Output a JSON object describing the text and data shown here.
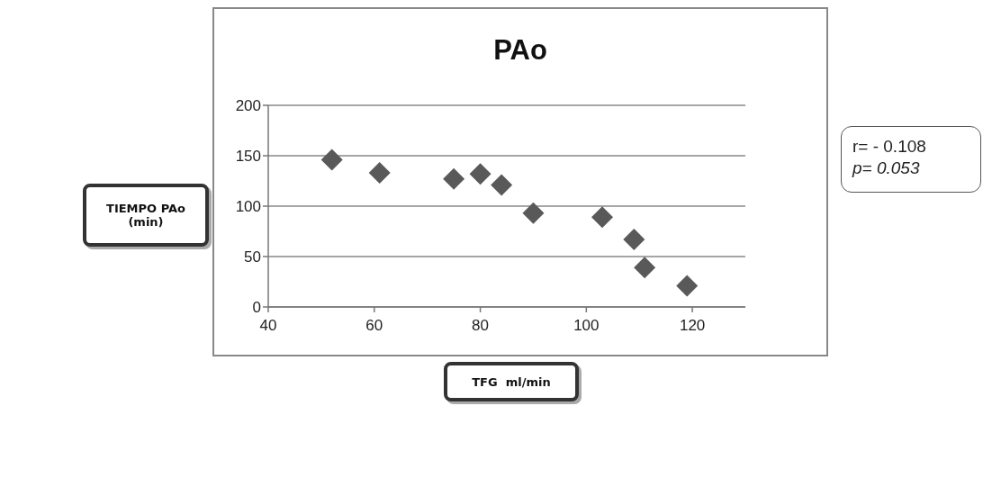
{
  "chart_data": {
    "type": "scatter",
    "title": "PAo",
    "xlabel": "TFG  ml/min",
    "ylabel": "TIEMPO PAo (min)",
    "x": [
      52,
      61,
      75,
      80,
      84,
      90,
      103,
      109,
      111,
      119
    ],
    "series": [
      {
        "color": "#595959",
        "values": [
          146,
          133,
          127,
          132,
          121,
          93,
          89,
          67,
          39,
          21
        ]
      }
    ],
    "xlim": [
      40,
      130
    ],
    "xticks": [
      40,
      60,
      80,
      100,
      120
    ],
    "ylim": [
      0,
      200
    ],
    "yticks": [
      0,
      50,
      100,
      150,
      200
    ],
    "grid": "y",
    "marker": "diamond",
    "annotations": [
      "r= - 0.108",
      "p= 0.053"
    ]
  }
}
